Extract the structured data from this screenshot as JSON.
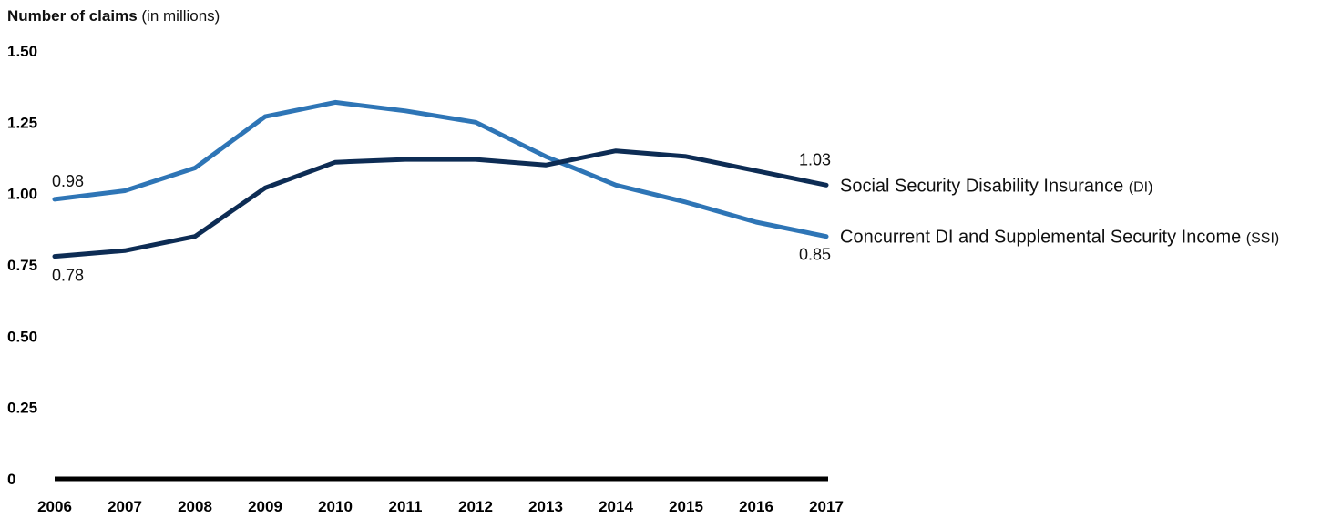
{
  "y_title": {
    "main": "Number of claims",
    "unit": "(in millions)"
  },
  "colors": {
    "di": "#0d2c54",
    "concurrent": "#2e75b6",
    "axis": "#000000"
  },
  "chart_data": {
    "type": "line",
    "categories": [
      "2006",
      "2007",
      "2008",
      "2009",
      "2010",
      "2011",
      "2012",
      "2013",
      "2014",
      "2015",
      "2016",
      "2017"
    ],
    "ylim": [
      0,
      1.5
    ],
    "yticks": [
      {
        "value": 0,
        "label": "0"
      },
      {
        "value": 0.25,
        "label": "0.25"
      },
      {
        "value": 0.5,
        "label": "0.50"
      },
      {
        "value": 0.75,
        "label": "0.75"
      },
      {
        "value": 1.0,
        "label": "1.00"
      },
      {
        "value": 1.25,
        "label": "1.25"
      },
      {
        "value": 1.5,
        "label": "1.50"
      }
    ],
    "grid": false,
    "series": [
      {
        "key": "di",
        "name": "Social Security Disability Insurance",
        "abbr": "(DI)",
        "values": [
          0.78,
          0.8,
          0.85,
          1.02,
          1.11,
          1.12,
          1.12,
          1.1,
          1.15,
          1.13,
          1.08,
          1.03
        ],
        "start_label": "0.78",
        "end_label": "1.03"
      },
      {
        "key": "concurrent",
        "name": "Concurrent DI and Supplemental Security Income",
        "abbr": "(SSI)",
        "values": [
          0.98,
          1.01,
          1.09,
          1.27,
          1.32,
          1.29,
          1.25,
          1.13,
          1.03,
          0.97,
          0.9,
          0.85
        ],
        "start_label": "0.98",
        "end_label": "0.85"
      }
    ]
  }
}
